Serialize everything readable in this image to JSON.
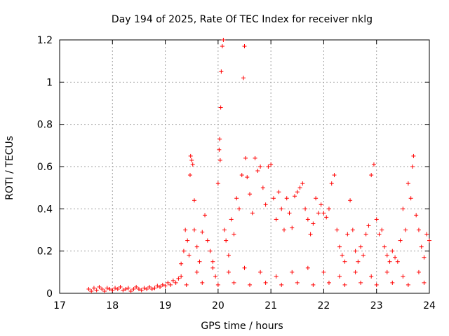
{
  "chart_data": {
    "type": "scatter",
    "title": "Day 194 of 2025, Rate Of TEC Index for receiver nklg",
    "xlabel": "GPS time / hours",
    "ylabel": "ROTI / TECUs",
    "xlim": [
      17,
      24
    ],
    "ylim": [
      0,
      1.2
    ],
    "x_ticks": [
      17,
      18,
      19,
      20,
      21,
      22,
      23,
      24
    ],
    "x_tick_labels": [
      "17",
      "18",
      "19",
      "20",
      "21",
      "22",
      "23",
      "24"
    ],
    "y_ticks": [
      0,
      0.2,
      0.4,
      0.6,
      0.8,
      1.0,
      1.2
    ],
    "y_tick_labels": [
      "0",
      "0.2",
      "0.4",
      "0.6",
      "0.8",
      "1",
      "1.2"
    ],
    "grid": true,
    "marker": "+",
    "color": "#ff0000",
    "series": [
      {
        "name": "ROTI",
        "points": [
          [
            17.55,
            0.02
          ],
          [
            17.6,
            0.01
          ],
          [
            17.65,
            0.025
          ],
          [
            17.7,
            0.015
          ],
          [
            17.75,
            0.03
          ],
          [
            17.8,
            0.02
          ],
          [
            17.85,
            0.01
          ],
          [
            17.9,
            0.025
          ],
          [
            17.95,
            0.02
          ],
          [
            18.0,
            0.015
          ],
          [
            18.05,
            0.025
          ],
          [
            18.1,
            0.02
          ],
          [
            18.15,
            0.03
          ],
          [
            18.2,
            0.015
          ],
          [
            18.25,
            0.02
          ],
          [
            18.3,
            0.025
          ],
          [
            18.35,
            0.01
          ],
          [
            18.4,
            0.02
          ],
          [
            18.45,
            0.03
          ],
          [
            18.5,
            0.02
          ],
          [
            18.55,
            0.015
          ],
          [
            18.6,
            0.025
          ],
          [
            18.65,
            0.02
          ],
          [
            18.7,
            0.03
          ],
          [
            18.75,
            0.02
          ],
          [
            18.8,
            0.025
          ],
          [
            18.85,
            0.035
          ],
          [
            18.9,
            0.03
          ],
          [
            18.95,
            0.04
          ],
          [
            19.0,
            0.035
          ],
          [
            19.05,
            0.05
          ],
          [
            19.1,
            0.04
          ],
          [
            19.15,
            0.06
          ],
          [
            19.2,
            0.05
          ],
          [
            19.25,
            0.07
          ],
          [
            19.3,
            0.14
          ],
          [
            19.35,
            0.2
          ],
          [
            19.38,
            0.3
          ],
          [
            19.42,
            0.25
          ],
          [
            19.45,
            0.18
          ],
          [
            19.48,
            0.65
          ],
          [
            19.5,
            0.63
          ],
          [
            19.52,
            0.61
          ],
          [
            19.47,
            0.56
          ],
          [
            19.55,
            0.44
          ],
          [
            19.55,
            0.3
          ],
          [
            19.6,
            0.22
          ],
          [
            19.65,
            0.15
          ],
          [
            19.7,
            0.29
          ],
          [
            19.75,
            0.37
          ],
          [
            19.8,
            0.25
          ],
          [
            19.85,
            0.2
          ],
          [
            19.9,
            0.15
          ],
          [
            19.95,
            0.08
          ],
          [
            20.0,
            0.52
          ],
          [
            20.02,
            0.68
          ],
          [
            20.03,
            0.73
          ],
          [
            20.05,
            0.88
          ],
          [
            20.06,
            1.05
          ],
          [
            20.08,
            1.17
          ],
          [
            20.1,
            1.2
          ],
          [
            20.04,
            0.63
          ],
          [
            20.12,
            0.3
          ],
          [
            20.15,
            0.25
          ],
          [
            20.2,
            0.18
          ],
          [
            20.25,
            0.35
          ],
          [
            20.3,
            0.28
          ],
          [
            20.35,
            0.45
          ],
          [
            20.4,
            0.4
          ],
          [
            20.45,
            0.56
          ],
          [
            20.48,
            1.02
          ],
          [
            20.5,
            1.17
          ],
          [
            20.52,
            0.64
          ],
          [
            20.55,
            0.55
          ],
          [
            20.6,
            0.47
          ],
          [
            20.65,
            0.38
          ],
          [
            20.7,
            0.64
          ],
          [
            20.75,
            0.58
          ],
          [
            20.8,
            0.6
          ],
          [
            20.85,
            0.5
          ],
          [
            20.9,
            0.42
          ],
          [
            20.95,
            0.6
          ],
          [
            21.0,
            0.61
          ],
          [
            21.05,
            0.45
          ],
          [
            21.1,
            0.35
          ],
          [
            21.15,
            0.48
          ],
          [
            21.2,
            0.4
          ],
          [
            21.25,
            0.3
          ],
          [
            21.3,
            0.45
          ],
          [
            21.35,
            0.38
          ],
          [
            21.4,
            0.31
          ],
          [
            21.45,
            0.46
          ],
          [
            21.5,
            0.48
          ],
          [
            21.55,
            0.5
          ],
          [
            21.6,
            0.52
          ],
          [
            21.65,
            0.4
          ],
          [
            21.7,
            0.35
          ],
          [
            21.75,
            0.28
          ],
          [
            21.8,
            0.33
          ],
          [
            21.85,
            0.45
          ],
          [
            21.9,
            0.38
          ],
          [
            21.95,
            0.42
          ],
          [
            22.0,
            0.38
          ],
          [
            22.05,
            0.36
          ],
          [
            22.1,
            0.4
          ],
          [
            22.15,
            0.52
          ],
          [
            22.2,
            0.56
          ],
          [
            22.25,
            0.3
          ],
          [
            22.3,
            0.22
          ],
          [
            22.35,
            0.18
          ],
          [
            22.4,
            0.15
          ],
          [
            22.45,
            0.28
          ],
          [
            22.5,
            0.44
          ],
          [
            22.55,
            0.3
          ],
          [
            22.6,
            0.2
          ],
          [
            22.65,
            0.15
          ],
          [
            22.7,
            0.22
          ],
          [
            22.75,
            0.18
          ],
          [
            22.8,
            0.28
          ],
          [
            22.85,
            0.32
          ],
          [
            22.9,
            0.56
          ],
          [
            22.95,
            0.61
          ],
          [
            23.0,
            0.35
          ],
          [
            23.05,
            0.28
          ],
          [
            23.1,
            0.3
          ],
          [
            23.15,
            0.22
          ],
          [
            23.2,
            0.18
          ],
          [
            23.25,
            0.15
          ],
          [
            23.3,
            0.2
          ],
          [
            23.35,
            0.17
          ],
          [
            23.4,
            0.15
          ],
          [
            23.45,
            0.25
          ],
          [
            23.5,
            0.4
          ],
          [
            23.55,
            0.3
          ],
          [
            23.6,
            0.52
          ],
          [
            23.65,
            0.45
          ],
          [
            23.68,
            0.6
          ],
          [
            23.7,
            0.65
          ],
          [
            23.75,
            0.37
          ],
          [
            23.8,
            0.3
          ],
          [
            23.85,
            0.22
          ],
          [
            23.9,
            0.17
          ],
          [
            23.95,
            0.28
          ],
          [
            24.0,
            0.25
          ],
          [
            19.3,
            0.08
          ],
          [
            19.6,
            0.1
          ],
          [
            19.9,
            0.12
          ],
          [
            20.2,
            0.1
          ],
          [
            20.5,
            0.12
          ],
          [
            20.8,
            0.1
          ],
          [
            21.1,
            0.08
          ],
          [
            21.4,
            0.1
          ],
          [
            21.7,
            0.12
          ],
          [
            22.0,
            0.1
          ],
          [
            22.3,
            0.08
          ],
          [
            22.6,
            0.1
          ],
          [
            22.9,
            0.08
          ],
          [
            23.2,
            0.1
          ],
          [
            23.5,
            0.08
          ],
          [
            23.8,
            0.1
          ],
          [
            19.4,
            0.04
          ],
          [
            19.7,
            0.05
          ],
          [
            20.0,
            0.04
          ],
          [
            20.3,
            0.05
          ],
          [
            20.6,
            0.04
          ],
          [
            20.9,
            0.05
          ],
          [
            21.2,
            0.04
          ],
          [
            21.5,
            0.05
          ],
          [
            21.8,
            0.04
          ],
          [
            22.1,
            0.05
          ],
          [
            22.4,
            0.04
          ],
          [
            22.7,
            0.05
          ],
          [
            23.0,
            0.04
          ],
          [
            23.3,
            0.05
          ],
          [
            23.6,
            0.04
          ],
          [
            23.9,
            0.05
          ]
        ]
      }
    ]
  }
}
